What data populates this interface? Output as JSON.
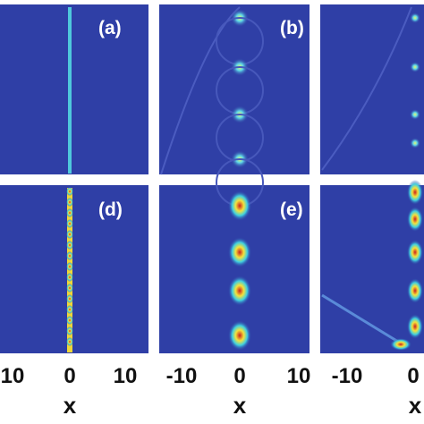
{
  "panel_labels": [
    "(a)",
    "(b)",
    "(d)",
    "(e)"
  ],
  "columns": [
    {
      "ticks": [
        "10",
        "0",
        "10"
      ],
      "axis_label": "x"
    },
    {
      "ticks": [
        "-10",
        "0",
        "10"
      ],
      "axis_label": "x"
    },
    {
      "ticks": [
        "-10",
        "0"
      ],
      "axis_label": "x"
    }
  ]
}
